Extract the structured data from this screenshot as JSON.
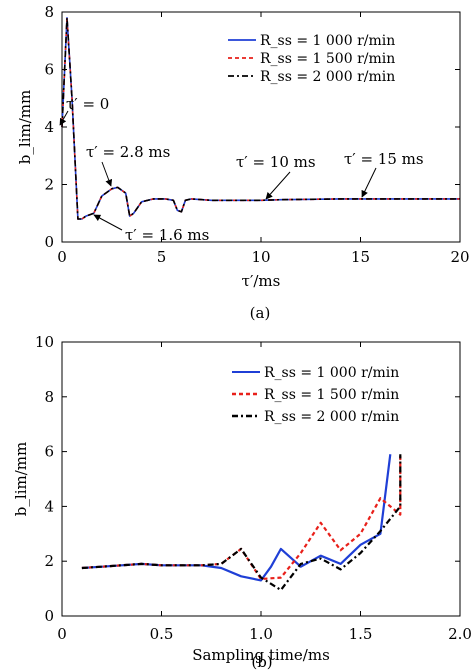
{
  "chart_data": [
    {
      "panel": "a",
      "type": "line",
      "caption": "(a)",
      "xlabel": "τ′/ms",
      "ylabel": "b_lim/mm",
      "xlim": [
        0,
        20
      ],
      "ylim": [
        0,
        8
      ],
      "xticks": [
        "0",
        "5",
        "10",
        "15",
        "20"
      ],
      "yticks": [
        "0",
        "2",
        "4",
        "6",
        "8"
      ],
      "grid": false,
      "legend": {
        "placement": "top-right"
      },
      "series": [
        {
          "name": "R_ss = 1 000 r/min",
          "color": "#1f3fd6",
          "dash": "solid",
          "x": [
            0,
            0.25,
            0.5,
            0.8,
            1.0,
            1.2,
            1.6,
            2.0,
            2.5,
            2.8,
            3.2,
            3.4,
            3.6,
            4.0,
            4.6,
            5.2,
            5.6,
            5.8,
            6.0,
            6.2,
            6.5,
            7.5,
            9,
            10,
            11,
            12,
            13,
            14,
            15,
            16,
            17,
            18,
            19,
            20
          ],
          "y": [
            4.0,
            7.8,
            5.0,
            0.8,
            0.8,
            0.9,
            1.0,
            1.6,
            1.85,
            1.9,
            1.7,
            0.9,
            1.0,
            1.4,
            1.5,
            1.5,
            1.45,
            1.1,
            1.05,
            1.45,
            1.5,
            1.45,
            1.45,
            1.45,
            1.47,
            1.48,
            1.49,
            1.5,
            1.5,
            1.5,
            1.5,
            1.5,
            1.5,
            1.5
          ]
        },
        {
          "name": "R_ss = 1 500 r/min",
          "color": "#e8201a",
          "dash": "4 3",
          "x": [
            0,
            0.25,
            0.5,
            0.8,
            1.0,
            1.2,
            1.6,
            2.0,
            2.5,
            2.8,
            3.2,
            3.4,
            3.6,
            4.0,
            4.6,
            5.2,
            5.6,
            5.8,
            6.0,
            6.2,
            6.5,
            7.5,
            9,
            10,
            11,
            12,
            13,
            14,
            15,
            16,
            17,
            18,
            19,
            20
          ],
          "y": [
            4.0,
            7.8,
            5.0,
            0.8,
            0.8,
            0.9,
            1.0,
            1.6,
            1.85,
            1.9,
            1.7,
            0.9,
            1.0,
            1.4,
            1.5,
            1.5,
            1.45,
            1.1,
            1.05,
            1.45,
            1.5,
            1.45,
            1.45,
            1.45,
            1.47,
            1.48,
            1.49,
            1.5,
            1.5,
            1.5,
            1.5,
            1.5,
            1.5,
            1.5
          ]
        },
        {
          "name": "R_ss = 2 000 r/min",
          "color": "#000000",
          "dash": "6 3 2 3",
          "x": [
            0,
            0.25,
            0.5,
            0.8,
            1.0,
            1.2,
            1.6,
            2.0,
            2.5,
            2.8,
            3.2,
            3.4,
            3.6,
            4.0,
            4.6,
            5.2,
            5.6,
            5.8,
            6.0,
            6.2,
            6.5,
            7.5,
            9,
            10,
            11,
            12,
            13,
            14,
            15,
            16,
            17,
            18,
            19,
            20
          ],
          "y": [
            4.0,
            7.8,
            5.0,
            0.8,
            0.8,
            0.9,
            1.0,
            1.6,
            1.85,
            1.9,
            1.7,
            0.9,
            1.0,
            1.4,
            1.5,
            1.5,
            1.45,
            1.1,
            1.05,
            1.45,
            1.5,
            1.45,
            1.45,
            1.45,
            1.47,
            1.48,
            1.49,
            1.5,
            1.5,
            1.5,
            1.5,
            1.5,
            1.5,
            1.5
          ]
        }
      ],
      "annotations": [
        {
          "text": "τ′ = 0",
          "point": [
            0,
            4.0
          ]
        },
        {
          "text": "τ′ = 2.8 ms",
          "point": [
            2.8,
            1.9
          ]
        },
        {
          "text": "τ′ = 1.6 ms",
          "point": [
            1.6,
            1.0
          ]
        },
        {
          "text": "τ′ = 10 ms",
          "point": [
            10,
            1.45
          ]
        },
        {
          "text": "τ′ = 15 ms",
          "point": [
            15,
            1.5
          ]
        }
      ]
    },
    {
      "panel": "b",
      "type": "line",
      "caption": "(b)",
      "xlabel": "Sampling time/ms",
      "ylabel": "b_lim/mm",
      "xlim": [
        0,
        2.0
      ],
      "ylim": [
        0,
        10
      ],
      "xticks": [
        "0",
        "0.5",
        "1.0",
        "1.5",
        "2.0"
      ],
      "yticks": [
        "0",
        "2",
        "4",
        "6",
        "8",
        "10"
      ],
      "grid": false,
      "legend": {
        "placement": "top-right"
      },
      "series": [
        {
          "name": "R_ss = 1 000 r/min",
          "color": "#1f3fd6",
          "dash": "solid",
          "x": [
            0.1,
            0.2,
            0.3,
            0.4,
            0.5,
            0.6,
            0.7,
            0.8,
            0.9,
            1.0,
            1.05,
            1.1,
            1.2,
            1.3,
            1.4,
            1.5,
            1.6,
            1.65
          ],
          "y": [
            1.75,
            1.8,
            1.85,
            1.9,
            1.85,
            1.85,
            1.85,
            1.75,
            1.45,
            1.3,
            1.8,
            2.45,
            1.8,
            2.2,
            1.9,
            2.6,
            3.0,
            5.9
          ]
        },
        {
          "name": "R_ss = 1 500 r/min",
          "color": "#e8201a",
          "dash": "4 3",
          "x": [
            0.1,
            0.2,
            0.3,
            0.4,
            0.5,
            0.6,
            0.7,
            0.8,
            0.9,
            1.0,
            1.1,
            1.2,
            1.3,
            1.4,
            1.5,
            1.6,
            1.7,
            1.7
          ],
          "y": [
            1.75,
            1.8,
            1.85,
            1.9,
            1.85,
            1.85,
            1.85,
            1.9,
            2.45,
            1.35,
            1.4,
            2.3,
            3.4,
            2.4,
            3.0,
            4.3,
            3.7,
            5.9
          ]
        },
        {
          "name": "R_ss = 2 000 r/min",
          "color": "#000000",
          "dash": "6 3 2 3",
          "x": [
            0.1,
            0.2,
            0.3,
            0.4,
            0.5,
            0.6,
            0.7,
            0.8,
            0.9,
            1.0,
            1.1,
            1.2,
            1.3,
            1.4,
            1.5,
            1.6,
            1.7,
            1.7
          ],
          "y": [
            1.75,
            1.8,
            1.85,
            1.9,
            1.85,
            1.85,
            1.85,
            1.9,
            2.45,
            1.4,
            0.95,
            1.9,
            2.1,
            1.7,
            2.3,
            3.1,
            4.0,
            5.9
          ]
        }
      ]
    }
  ]
}
